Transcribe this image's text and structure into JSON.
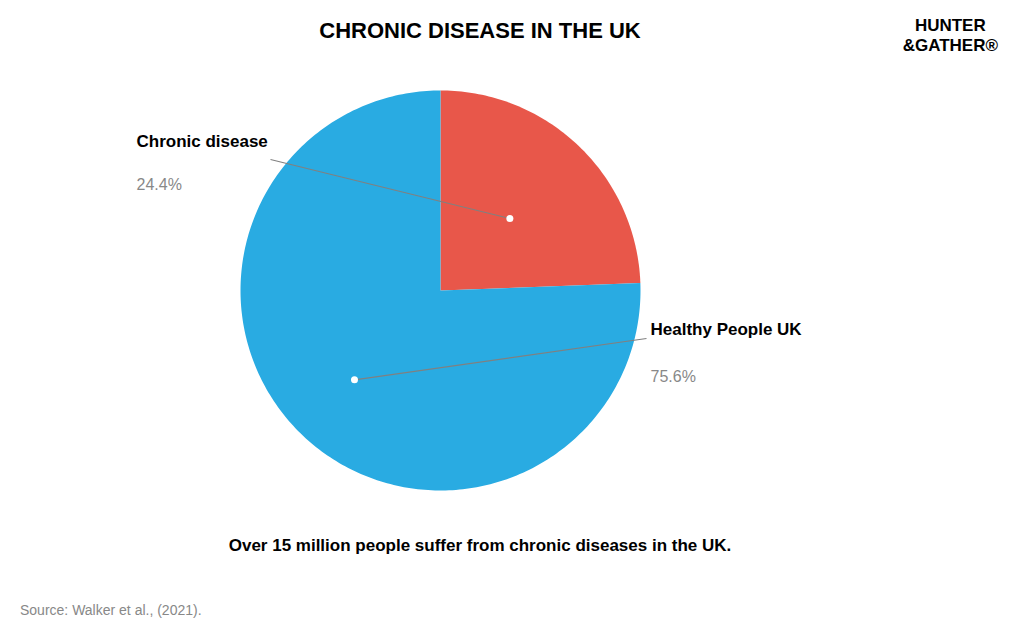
{
  "chart_data": {
    "type": "pie",
    "title": "CHRONIC DISEASE IN THE UK",
    "subtitle": "Over 15 million people suffer from chronic diseases in the UK.",
    "source": "Source:  Walker et al., (2021).",
    "annotations": [
      "HUNTER",
      "&GATHER®"
    ],
    "categories": [
      "Chronic disease",
      "Healthy People UK"
    ],
    "values": [
      24.4,
      75.6
    ],
    "value_labels": [
      "24.4%",
      "75.6%"
    ],
    "colors": [
      "#E8574A",
      "#29ABE2"
    ],
    "data_labels": true
  }
}
